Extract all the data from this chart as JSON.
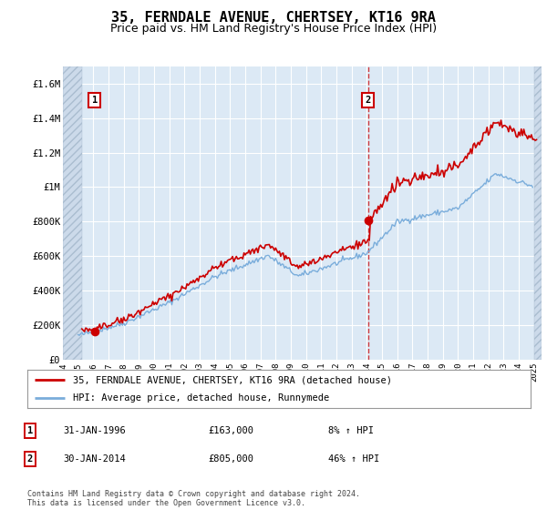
{
  "title": "35, FERNDALE AVENUE, CHERTSEY, KT16 9RA",
  "subtitle": "Price paid vs. HM Land Registry's House Price Index (HPI)",
  "title_fontsize": 11,
  "subtitle_fontsize": 9,
  "background_color": "#dce9f5",
  "line_color_property": "#cc0000",
  "line_color_hpi": "#7aaddb",
  "point1_date": 1996.083,
  "point1_value": 163000,
  "point2_date": 2014.083,
  "point2_value": 805000,
  "xlim": [
    1994.0,
    2025.5
  ],
  "ylim": [
    0,
    1700000
  ],
  "yticks": [
    0,
    200000,
    400000,
    600000,
    800000,
    1000000,
    1200000,
    1400000,
    1600000
  ],
  "ytick_labels": [
    "£0",
    "£200K",
    "£400K",
    "£600K",
    "£800K",
    "£1M",
    "£1.2M",
    "£1.4M",
    "£1.6M"
  ],
  "xticks": [
    1994,
    1995,
    1996,
    1997,
    1998,
    1999,
    2000,
    2001,
    2002,
    2003,
    2004,
    2005,
    2006,
    2007,
    2008,
    2009,
    2010,
    2011,
    2012,
    2013,
    2014,
    2015,
    2016,
    2017,
    2018,
    2019,
    2020,
    2021,
    2022,
    2023,
    2024,
    2025
  ],
  "legend_label_property": "35, FERNDALE AVENUE, CHERTSEY, KT16 9RA (detached house)",
  "legend_label_hpi": "HPI: Average price, detached house, Runnymede",
  "note1_date": "31-JAN-1996",
  "note1_price": "£163,000",
  "note1_hpi": "8% ↑ HPI",
  "note2_date": "30-JAN-2014",
  "note2_price": "£805,000",
  "note2_hpi": "46% ↑ HPI",
  "footer": "Contains HM Land Registry data © Crown copyright and database right 2024.\nThis data is licensed under the Open Government Licence v3.0.",
  "data_start_year": 1995.25,
  "data_end_year": 2025.0
}
